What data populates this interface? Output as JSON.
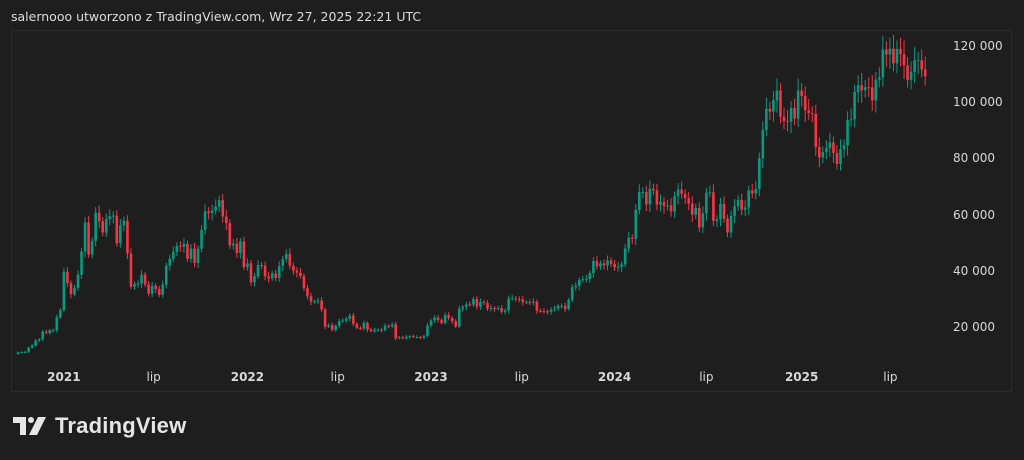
{
  "header": {
    "title": "salernooo utworzono z TradingView.com, Wrz 27, 2025 22:21 UTC"
  },
  "logo": {
    "text": "TradingView"
  },
  "colors": {
    "up": "#089981",
    "down": "#f23645",
    "background": "#1e1e1e",
    "text": "#d8d8d8"
  },
  "chart_data": {
    "type": "candlestick",
    "interval": "weekly",
    "start_week": "2020-10-05",
    "first_open": 10800,
    "closes": [
      11300,
      11400,
      11500,
      13000,
      13800,
      15500,
      16000,
      18700,
      18200,
      19200,
      19200,
      23800,
      26400,
      40000,
      36000,
      32000,
      34300,
      38900,
      47200,
      57500,
      46200,
      51000,
      61000,
      58000,
      54000,
      58800,
      59800,
      60000,
      50100,
      56500,
      58200,
      46500,
      34700,
      35600,
      35800,
      39000,
      35500,
      32200,
      35000,
      33900,
      31800,
      35400,
      42200,
      44600,
      47100,
      49300,
      48900,
      49900,
      44600,
      48300,
      43200,
      48200,
      54900,
      61500,
      60900,
      61800,
      63200,
      65500,
      59700,
      57300,
      49400,
      50000,
      46700,
      50800,
      41700,
      43000,
      36300,
      38400,
      42400,
      42200,
      38400,
      37700,
      39400,
      37800,
      42000,
      44500,
      46400,
      42200,
      40400,
      39700,
      38500,
      34200,
      31300,
      29400,
      29400,
      29800,
      26600,
      20500,
      21000,
      19300,
      20800,
      22500,
      22600,
      23300,
      24400,
      21500,
      20000,
      19800,
      21800,
      19400,
      18900,
      19300,
      19400,
      19200,
      20800,
      20600,
      21300,
      16300,
      16700,
      16400,
      16900,
      17100,
      16800,
      16800,
      16600,
      17100,
      20900,
      22700,
      23700,
      22900,
      21800,
      24600,
      23600,
      22400,
      20500,
      26900,
      27500,
      28400,
      28300,
      30300,
      27600,
      29300,
      28900,
      26900,
      27100,
      26900,
      27100,
      25800,
      26300,
      30500,
      30600,
      30300,
      30200,
      29200,
      29200,
      29100,
      29400,
      26100,
      26000,
      25900,
      25800,
      26500,
      26900,
      27900,
      27900,
      26800,
      30000,
      34500,
      35000,
      37100,
      37400,
      37400,
      39500,
      43800,
      41900,
      43000,
      42300,
      44000,
      42800,
      41600,
      41800,
      42600,
      48300,
      52100,
      51700,
      62000,
      68300,
      68400,
      64000,
      69600,
      69000,
      63900,
      64900,
      63400,
      63600,
      61500,
      66900,
      69300,
      67700,
      66200,
      64300,
      60300,
      62700,
      55800,
      60800,
      68200,
      68300,
      58100,
      58700,
      64200,
      58900,
      54000,
      59900,
      63300,
      65600,
      62100,
      62900,
      69000,
      67900,
      69500,
      80400,
      90500,
      98000,
      97000,
      101000,
      104500,
      95200,
      93700,
      93400,
      98300,
      94500,
      104500,
      102600,
      97500,
      96500,
      96200,
      84400,
      80700,
      82600,
      84000,
      86000,
      82300,
      78400,
      83700,
      85000,
      94000,
      94300,
      104000,
      106400,
      104600,
      105700,
      105600,
      101000,
      108400,
      109200,
      119100,
      117300,
      119400,
      114200,
      119300,
      117500,
      113500,
      108300,
      111200,
      115300,
      115300,
      112000,
      109600
    ],
    "y_axis": {
      "ticks": [
        "120 000",
        "100 000",
        "80 000",
        "60 000",
        "40 000",
        "20 000"
      ],
      "tick_values": [
        120000,
        100000,
        80000,
        60000,
        40000,
        20000
      ]
    },
    "x_axis": {
      "ticks": [
        {
          "label": "2021",
          "date": "2021-01-04"
        },
        {
          "label": "lip",
          "date": "2021-07-01"
        },
        {
          "label": "2022",
          "date": "2022-01-03"
        },
        {
          "label": "lip",
          "date": "2022-07-01"
        },
        {
          "label": "2023",
          "date": "2023-01-02"
        },
        {
          "label": "lip",
          "date": "2023-07-01"
        },
        {
          "label": "2024",
          "date": "2024-01-01"
        },
        {
          "label": "lip",
          "date": "2024-07-01"
        },
        {
          "label": "2025",
          "date": "2025-01-06"
        },
        {
          "label": "lip",
          "date": "2025-07-01"
        }
      ]
    },
    "grid": false,
    "legend": "none"
  }
}
